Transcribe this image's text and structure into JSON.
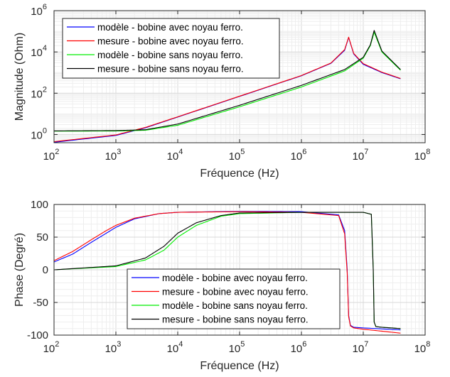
{
  "chart_data": [
    {
      "type": "line",
      "xlabel": "Fréquence (Hz)",
      "ylabel": "Magnitude (Ohm)",
      "xscale": "log",
      "yscale": "log",
      "xlim": [
        100,
        100000000
      ],
      "ylim": [
        0.4,
        1000000
      ],
      "x_ticks": [
        {
          "base": "10",
          "exp": "2"
        },
        {
          "base": "10",
          "exp": "3"
        },
        {
          "base": "10",
          "exp": "4"
        },
        {
          "base": "10",
          "exp": "5"
        },
        {
          "base": "10",
          "exp": "6"
        },
        {
          "base": "10",
          "exp": "7"
        },
        {
          "base": "10",
          "exp": "8"
        }
      ],
      "y_ticks": [
        {
          "base": "10",
          "exp": "0"
        },
        {
          "base": "10",
          "exp": "2"
        },
        {
          "base": "10",
          "exp": "4"
        },
        {
          "base": "10",
          "exp": "6"
        }
      ],
      "grid": true,
      "legend": "top-left",
      "series": [
        {
          "name": "modèle - bobine avec noyau ferro.",
          "color": "#0000ff",
          "x": [
            100,
            1000,
            3000,
            10000,
            100000,
            1000000,
            3000000,
            5000000,
            5800000,
            7000000,
            10000000,
            20000000,
            40000000
          ],
          "y": [
            0.42,
            0.9,
            2.1,
            7,
            70,
            700,
            2800,
            12000,
            50000,
            8000,
            2500,
            1000,
            500
          ]
        },
        {
          "name": "mesure - bobine avec noyau ferro.",
          "color": "#ff0000",
          "x": [
            100,
            1000,
            3000,
            10000,
            100000,
            1000000,
            3000000,
            5000000,
            5800000,
            7000000,
            10000000,
            20000000,
            40000000
          ],
          "y": [
            0.45,
            0.95,
            2.2,
            7.2,
            72,
            720,
            2900,
            13000,
            52000,
            8500,
            2700,
            1050,
            520
          ]
        },
        {
          "name": "modèle - bobine sans noyau ferro.",
          "color": "#00ee00",
          "x": [
            100,
            1000,
            3000,
            10000,
            100000,
            1000000,
            5000000,
            10000000,
            13000000,
            15000000,
            20000000,
            40000000
          ],
          "y": [
            1.45,
            1.47,
            1.6,
            2.8,
            22,
            200,
            1200,
            5000,
            20000,
            90000,
            10000,
            1300
          ]
        },
        {
          "name": "mesure - bobine sans noyau ferro.",
          "color": "#000000",
          "x": [
            100,
            1000,
            3000,
            10000,
            100000,
            1000000,
            5000000,
            10000000,
            13000000,
            15000000,
            20000000,
            40000000
          ],
          "y": [
            1.5,
            1.55,
            1.7,
            3.2,
            26,
            240,
            1400,
            5500,
            22000,
            110000,
            11000,
            1400
          ]
        }
      ]
    },
    {
      "type": "line",
      "xlabel": "Fréquence (Hz)",
      "ylabel": "Phase (Degré)",
      "xscale": "log",
      "xlim": [
        100,
        100000000
      ],
      "ylim": [
        -100,
        100
      ],
      "x_ticks": [
        {
          "base": "10",
          "exp": "2"
        },
        {
          "base": "10",
          "exp": "3"
        },
        {
          "base": "10",
          "exp": "4"
        },
        {
          "base": "10",
          "exp": "5"
        },
        {
          "base": "10",
          "exp": "6"
        },
        {
          "base": "10",
          "exp": "7"
        },
        {
          "base": "10",
          "exp": "8"
        }
      ],
      "y_ticks": [
        "-100",
        "-50",
        "0",
        "50",
        "100"
      ],
      "grid": true,
      "legend": "bottom-center",
      "series": [
        {
          "name": "modèle - bobine avec noyau ferro.",
          "color": "#0000ff",
          "x": [
            100,
            200,
            400,
            700,
            1000,
            2000,
            5000,
            10000,
            100000,
            1000000,
            4000000,
            5000000,
            5500000,
            5800000,
            6200000,
            7000000,
            10000000,
            40000000
          ],
          "y": [
            12,
            24,
            42,
            56,
            65,
            78,
            86,
            88,
            89.5,
            89,
            84,
            60,
            0,
            -70,
            -85,
            -88,
            -89,
            -92
          ]
        },
        {
          "name": "mesure - bobine avec noyau ferro.",
          "color": "#ff0000",
          "x": [
            100,
            200,
            400,
            700,
            1000,
            2000,
            5000,
            10000,
            100000,
            1000000,
            4000000,
            5000000,
            5500000,
            5800000,
            6200000,
            7000000,
            10000000,
            40000000
          ],
          "y": [
            14,
            28,
            46,
            60,
            68,
            79,
            86,
            88,
            89,
            88,
            83,
            55,
            -5,
            -72,
            -86,
            -89,
            -91,
            -97
          ]
        },
        {
          "name": "modèle - bobine sans noyau ferro.",
          "color": "#00ee00",
          "x": [
            100,
            1000,
            3000,
            6000,
            10000,
            20000,
            50000,
            100000,
            1000000,
            10000000,
            13500000,
            14500000,
            15000000,
            16000000,
            20000000,
            40000000
          ],
          "y": [
            0,
            5,
            15,
            30,
            50,
            68,
            82,
            86,
            88,
            88,
            85,
            0,
            -80,
            -87,
            -88,
            -90
          ]
        },
        {
          "name": "mesure - bobine sans noyau ferro.",
          "color": "#000000",
          "x": [
            100,
            1000,
            3000,
            6000,
            10000,
            20000,
            50000,
            100000,
            1000000,
            10000000,
            13500000,
            14500000,
            15000000,
            16000000,
            20000000,
            40000000
          ],
          "y": [
            0,
            6,
            18,
            36,
            56,
            72,
            83,
            87,
            88,
            88,
            85,
            0,
            -80,
            -87,
            -88,
            -90
          ]
        }
      ]
    }
  ]
}
